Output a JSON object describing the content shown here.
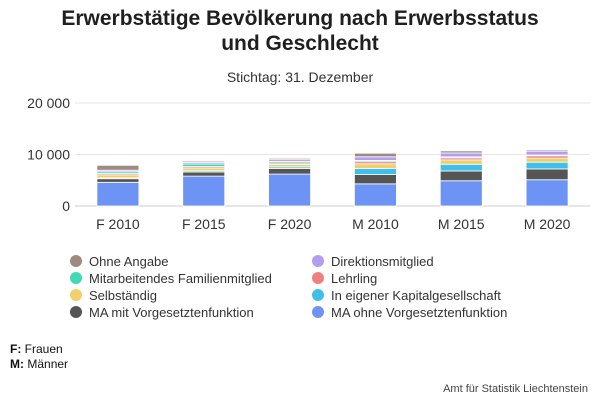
{
  "title_line1": "Erwerbstätige Bevölkerung nach Erwerbsstatus",
  "title_line2": "und Geschlecht",
  "subtitle": "Stichtag: 31. Dezember",
  "footnotes": [
    {
      "key": "F:",
      "text": "Frauen"
    },
    {
      "key": "M:",
      "text": "Männer"
    }
  ],
  "credit": "Amt für Statistik Liechtenstein",
  "chart_data": {
    "type": "bar",
    "stacked": true,
    "categories": [
      "F 2010",
      "F 2015",
      "F 2020",
      "M 2010",
      "M 2015",
      "M 2020"
    ],
    "ylim": [
      0,
      20000
    ],
    "yticks": [
      0,
      10000,
      20000
    ],
    "ytick_labels": [
      "0",
      "10 000",
      "20 000"
    ],
    "grid": true,
    "legend_placement": "bottom",
    "series": [
      {
        "name": "MA ohne Vorgesetztenfunktion",
        "color": "#6d93f5",
        "values": [
          4600,
          5800,
          6200,
          4300,
          4900,
          5100
        ]
      },
      {
        "name": "MA mit Vorgesetztenfunktion",
        "color": "#555555",
        "values": [
          700,
          800,
          1100,
          1800,
          1900,
          2100
        ]
      },
      {
        "name": "In eigener Kapitalgesellschaft",
        "color": "#3fbfea",
        "values": [
          150,
          250,
          300,
          1200,
          1300,
          1300
        ]
      },
      {
        "name": "Selbständig",
        "color": "#f2cf6b",
        "values": [
          600,
          550,
          500,
          900,
          850,
          800
        ]
      },
      {
        "name": "Lehrling",
        "color": "#f08080",
        "values": [
          250,
          250,
          250,
          400,
          400,
          450
        ]
      },
      {
        "name": "Mitarbeitendes Familienmitglied",
        "color": "#3fd9b3",
        "values": [
          350,
          500,
          300,
          250,
          200,
          150
        ]
      },
      {
        "name": "Direktionsmitglied",
        "color": "#b49cf0",
        "values": [
          300,
          300,
          350,
          700,
          750,
          750
        ]
      },
      {
        "name": "Ohne Angabe",
        "color": "#9d8a80",
        "values": [
          950,
          250,
          250,
          700,
          400,
          250
        ]
      }
    ],
    "legend_order": [
      "Ohne Angabe",
      "Direktionsmitglied",
      "Mitarbeitendes Familienmitglied",
      "Lehrling",
      "Selbständig",
      "In eigener Kapitalgesellschaft",
      "MA mit Vorgesetztenfunktion",
      "MA ohne Vorgesetztenfunktion"
    ]
  }
}
